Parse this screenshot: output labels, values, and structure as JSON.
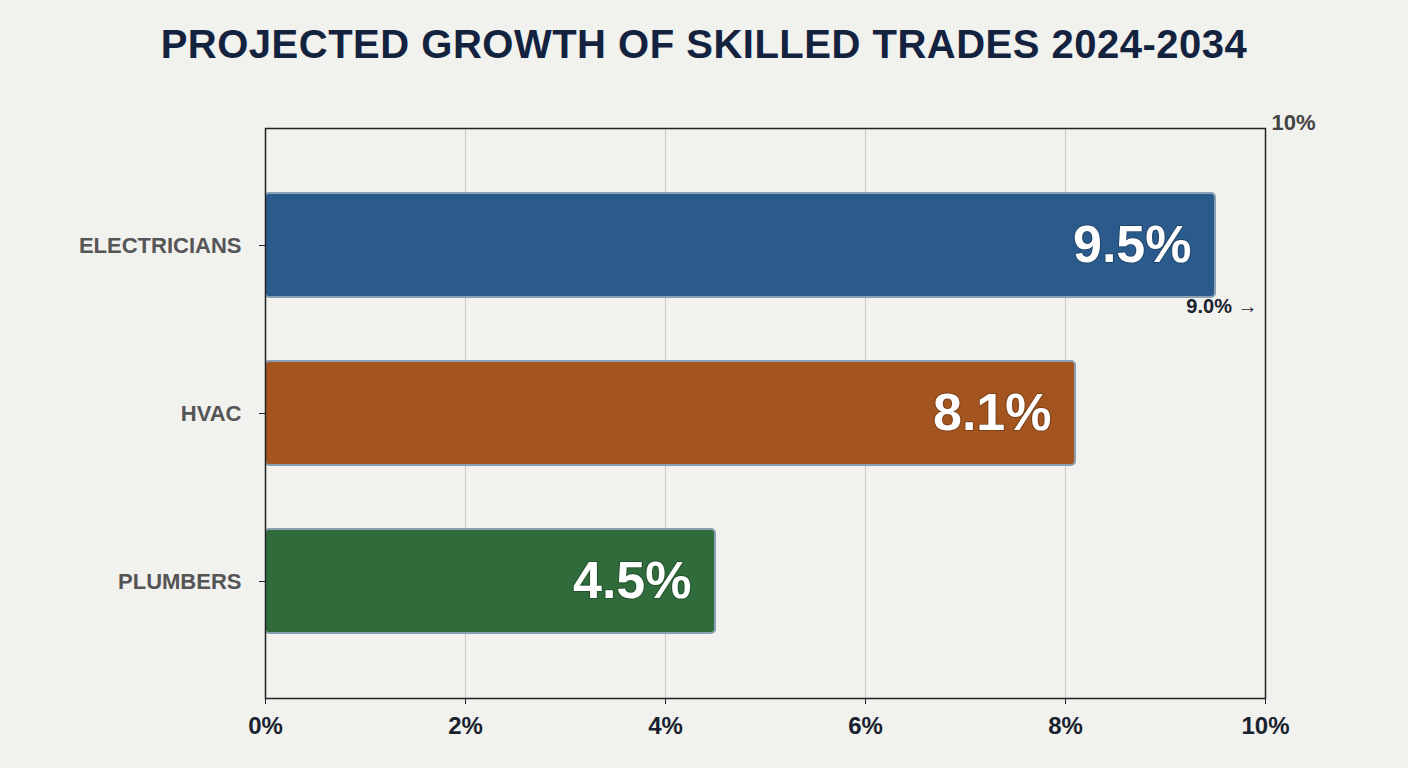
{
  "chart_data": {
    "type": "bar",
    "title": "PROJECTED GROWTH OF SKILLED TRADES 2024-2034",
    "orientation": "horizontal",
    "categories": [
      "ELECTRICIANS",
      "HVAC",
      "PLUMBERS"
    ],
    "values": [
      9.5,
      8.1,
      4.5
    ],
    "value_labels": [
      "9.5%",
      "8.1%",
      "4.5%"
    ],
    "colors": [
      "#2b5b8c",
      "#a3541f",
      "#2f6b3b"
    ],
    "data_labels": true,
    "xlim": [
      0,
      10
    ],
    "xticks": [
      {
        "value": 0,
        "label": "0%"
      },
      {
        "value": 2,
        "label": "2%"
      },
      {
        "value": 4,
        "label": "4%"
      },
      {
        "value": 6,
        "label": "6%"
      },
      {
        "value": 8,
        "label": "8%"
      },
      {
        "value": 10,
        "label": "10%"
      }
    ],
    "grid": true,
    "annotations": [
      "10%",
      "9.0% →"
    ]
  }
}
